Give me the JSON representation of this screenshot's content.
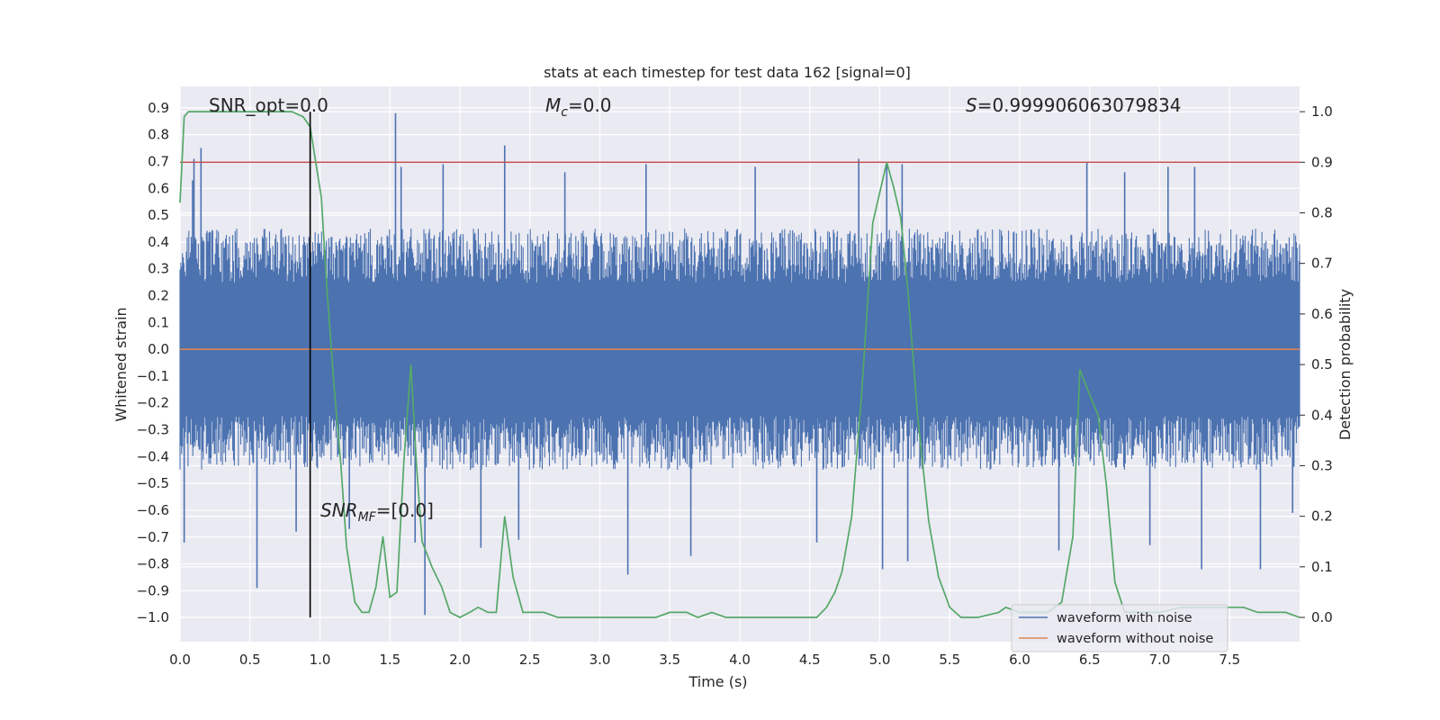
{
  "chart_data": {
    "type": "line",
    "title": "stats at each timestep for test data 162 [signal=0]",
    "xlabel": "Time (s)",
    "ylabel": "Whitened strain",
    "y2label": "Detection probability",
    "xlim": [
      0.0,
      8.0
    ],
    "ylim": [
      -1.09,
      0.98
    ],
    "y2lim": [
      -0.048,
      1.05
    ],
    "x_ticks": [
      0.0,
      0.5,
      1.0,
      1.5,
      2.0,
      2.5,
      3.0,
      3.5,
      4.0,
      4.5,
      5.0,
      5.5,
      6.0,
      6.5,
      7.0,
      7.5
    ],
    "x_tick_labels": [
      "0.0",
      "0.5",
      "1.0",
      "1.5",
      "2.0",
      "2.5",
      "3.0",
      "3.5",
      "4.0",
      "4.5",
      "5.0",
      "5.5",
      "6.0",
      "6.5",
      "7.0",
      "7.5"
    ],
    "y_ticks": [
      0.9,
      0.8,
      0.7,
      0.6,
      0.5,
      0.4,
      0.3,
      0.2,
      0.1,
      0.0,
      -0.1,
      -0.2,
      -0.3,
      -0.4,
      -0.5,
      -0.6,
      -0.7,
      -0.8,
      -0.9,
      -1.0
    ],
    "y_tick_labels": [
      "0.9",
      "0.8",
      "0.7",
      "0.6",
      "0.5",
      "0.4",
      "0.3",
      "0.2",
      "0.1",
      "0.0",
      "−0.1",
      "−0.2",
      "−0.3",
      "−0.4",
      "−0.5",
      "−0.6",
      "−0.7",
      "−0.8",
      "−0.9",
      "−1.0"
    ],
    "y2_ticks": [
      1.0,
      0.9,
      0.8,
      0.7,
      0.6,
      0.5,
      0.4,
      0.3,
      0.2,
      0.1,
      0.0
    ],
    "y2_tick_labels": [
      "1.0",
      "0.9",
      "0.8",
      "0.7",
      "0.6",
      "0.5",
      "0.4",
      "0.3",
      "0.2",
      "0.1",
      "0.0"
    ],
    "grid": true,
    "legend_placement": "lower-right",
    "annotations": {
      "snr_opt": "SNR_opt=0.0",
      "mc_symbol": "M",
      "mc_sub": "c",
      "mc_value": "=0.0",
      "s_symbol": "S",
      "s_value": "=0.999906063079834",
      "snr_mf_symbol": "SNR",
      "snr_mf_sub": "MF",
      "snr_mf_value": "=[0.0]"
    },
    "vertical_marker_x": 0.93,
    "threshold_probability": 0.9,
    "series": [
      {
        "name": "waveform with noise",
        "axis": "left",
        "color": "#4c72b0",
        "style": "dense-noise",
        "typical_envelope": [
          -0.45,
          0.45
        ],
        "peaks": [
          {
            "x": 0.03,
            "y": -0.72
          },
          {
            "x": 0.09,
            "y": 0.63
          },
          {
            "x": 0.1,
            "y": 0.71
          },
          {
            "x": 0.15,
            "y": 0.75
          },
          {
            "x": 0.55,
            "y": -0.89
          },
          {
            "x": 0.83,
            "y": -0.68
          },
          {
            "x": 1.21,
            "y": -0.67
          },
          {
            "x": 1.54,
            "y": 0.88
          },
          {
            "x": 1.58,
            "y": 0.68
          },
          {
            "x": 1.68,
            "y": -0.72
          },
          {
            "x": 1.75,
            "y": -0.99
          },
          {
            "x": 1.88,
            "y": 0.69
          },
          {
            "x": 2.15,
            "y": -0.74
          },
          {
            "x": 2.32,
            "y": 0.76
          },
          {
            "x": 2.42,
            "y": -0.71
          },
          {
            "x": 2.75,
            "y": 0.66
          },
          {
            "x": 3.2,
            "y": -0.84
          },
          {
            "x": 3.33,
            "y": 0.69
          },
          {
            "x": 3.65,
            "y": -0.77
          },
          {
            "x": 4.11,
            "y": 0.68
          },
          {
            "x": 4.55,
            "y": -0.72
          },
          {
            "x": 4.85,
            "y": 0.71
          },
          {
            "x": 5.05,
            "y": 0.7
          },
          {
            "x": 5.02,
            "y": -0.82
          },
          {
            "x": 5.16,
            "y": 0.69
          },
          {
            "x": 5.2,
            "y": -0.79
          },
          {
            "x": 6.28,
            "y": -0.75
          },
          {
            "x": 6.48,
            "y": 0.7
          },
          {
            "x": 6.75,
            "y": 0.66
          },
          {
            "x": 6.93,
            "y": -0.73
          },
          {
            "x": 7.06,
            "y": 0.68
          },
          {
            "x": 7.25,
            "y": 0.68
          },
          {
            "x": 7.3,
            "y": -0.82
          },
          {
            "x": 7.72,
            "y": -0.82
          },
          {
            "x": 7.95,
            "y": -0.61
          }
        ]
      },
      {
        "name": "waveform without noise",
        "axis": "left",
        "color": "#dd8452",
        "x": [
          0.0,
          8.0
        ],
        "y": [
          0.0,
          0.0
        ]
      },
      {
        "name": "detection probability",
        "axis": "right",
        "color": "#55a868",
        "x": [
          0.0,
          0.03,
          0.06,
          0.1,
          0.2,
          0.4,
          0.6,
          0.8,
          0.88,
          0.93,
          0.97,
          1.01,
          1.05,
          1.1,
          1.15,
          1.19,
          1.25,
          1.3,
          1.35,
          1.4,
          1.45,
          1.5,
          1.55,
          1.6,
          1.65,
          1.69,
          1.73,
          1.8,
          1.87,
          1.93,
          2.0,
          2.07,
          2.13,
          2.2,
          2.26,
          2.32,
          2.38,
          2.45,
          2.52,
          2.6,
          2.7,
          2.8,
          3.0,
          3.2,
          3.4,
          3.5,
          3.55,
          3.62,
          3.7,
          3.8,
          3.9,
          4.0,
          4.2,
          4.4,
          4.55,
          4.62,
          4.68,
          4.73,
          4.8,
          4.87,
          4.95,
          5.05,
          5.1,
          5.15,
          5.2,
          5.27,
          5.35,
          5.42,
          5.5,
          5.58,
          5.7,
          5.85,
          5.9,
          6.0,
          6.1,
          6.2,
          6.3,
          6.38,
          6.43,
          6.5,
          6.56,
          6.62,
          6.68,
          6.75,
          6.85,
          7.0,
          7.15,
          7.3,
          7.45,
          7.6,
          7.7,
          7.8,
          7.9,
          8.0
        ],
        "y": [
          0.82,
          0.99,
          1.0,
          1.0,
          1.0,
          1.0,
          1.0,
          1.0,
          0.99,
          0.97,
          0.9,
          0.83,
          0.65,
          0.46,
          0.3,
          0.14,
          0.03,
          0.01,
          0.01,
          0.06,
          0.16,
          0.04,
          0.05,
          0.31,
          0.5,
          0.3,
          0.15,
          0.1,
          0.06,
          0.01,
          0.0,
          0.01,
          0.02,
          0.01,
          0.01,
          0.2,
          0.08,
          0.01,
          0.01,
          0.01,
          0.0,
          0.0,
          0.0,
          0.0,
          0.0,
          0.01,
          0.01,
          0.01,
          0.0,
          0.01,
          0.0,
          0.0,
          0.0,
          0.0,
          0.0,
          0.02,
          0.05,
          0.09,
          0.2,
          0.44,
          0.78,
          0.9,
          0.85,
          0.79,
          0.65,
          0.4,
          0.19,
          0.08,
          0.02,
          0.0,
          0.0,
          0.01,
          0.02,
          0.01,
          0.01,
          0.01,
          0.03,
          0.16,
          0.49,
          0.44,
          0.4,
          0.26,
          0.07,
          0.01,
          0.01,
          0.01,
          0.02,
          0.02,
          0.02,
          0.02,
          0.01,
          0.01,
          0.01,
          0.0
        ]
      }
    ],
    "colors": {
      "background": "#eaeaf2",
      "grid": "#ffffff",
      "threshold": "#c44e52",
      "marker": "#000000"
    }
  }
}
